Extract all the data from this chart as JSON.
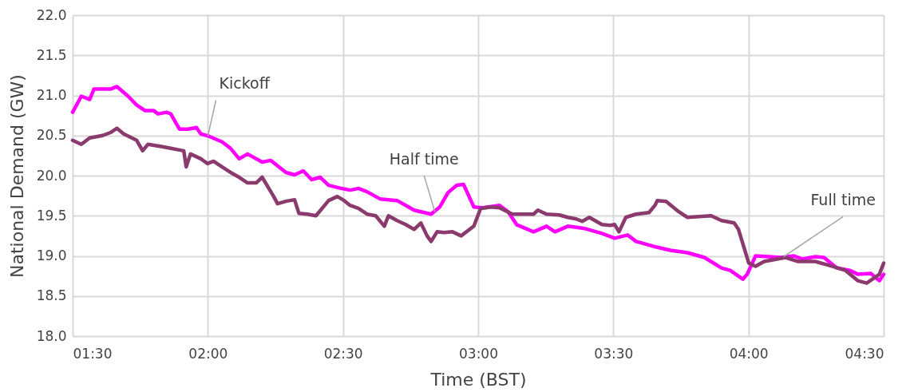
{
  "chart_data": {
    "type": "line",
    "xlabel": "Time (BST)",
    "ylabel": "National Demand (GW)",
    "xlim": [
      1.5,
      4.5
    ],
    "xticks": [
      {
        "value": 1.5,
        "label": "01:30"
      },
      {
        "value": 2.0,
        "label": "02:00"
      },
      {
        "value": 2.5,
        "label": "02:30"
      },
      {
        "value": 3.0,
        "label": "03:00"
      },
      {
        "value": 3.5,
        "label": "03:30"
      },
      {
        "value": 4.0,
        "label": "04:00"
      },
      {
        "value": 4.5,
        "label": "04:30"
      }
    ],
    "ylim": [
      18.0,
      22.0
    ],
    "yticks": [
      {
        "value": 18.0,
        "label": "18.0"
      },
      {
        "value": 18.5,
        "label": "18.5"
      },
      {
        "value": 19.0,
        "label": "19.0"
      },
      {
        "value": 19.5,
        "label": "19.5"
      },
      {
        "value": 20.0,
        "label": "20.0"
      },
      {
        "value": 20.5,
        "label": "20.5"
      },
      {
        "value": 21.0,
        "label": "21.0"
      },
      {
        "value": 21.5,
        "label": "21.5"
      },
      {
        "value": 22.0,
        "label": "22.0"
      }
    ],
    "grid": true,
    "marker": "none",
    "line_style": "solid",
    "series": [
      {
        "color": "#ff00ff",
        "x": [
          1.5,
          1.532,
          1.563,
          1.579,
          1.642,
          1.664,
          1.705,
          1.737,
          1.768,
          1.8,
          1.816,
          1.847,
          1.863,
          1.895,
          1.926,
          1.958,
          1.974,
          2.005,
          2.053,
          2.084,
          2.116,
          2.147,
          2.201,
          2.233,
          2.289,
          2.321,
          2.353,
          2.384,
          2.416,
          2.447,
          2.495,
          2.526,
          2.558,
          2.589,
          2.637,
          2.7,
          2.763,
          2.826,
          2.858,
          2.889,
          2.921,
          2.946,
          2.984,
          3.016,
          3.079,
          3.111,
          3.142,
          3.205,
          3.253,
          3.284,
          3.332,
          3.395,
          3.458,
          3.505,
          3.553,
          3.584,
          3.647,
          3.711,
          3.774,
          3.837,
          3.9,
          3.932,
          3.979,
          3.995,
          4.026,
          4.074,
          4.121,
          4.168,
          4.2,
          4.247,
          4.279,
          4.326,
          4.374,
          4.405,
          4.453,
          4.484,
          4.5
        ],
        "values": [
          20.79,
          20.99,
          20.95,
          21.08,
          21.08,
          21.11,
          20.99,
          20.88,
          20.81,
          20.81,
          20.77,
          20.79,
          20.77,
          20.58,
          20.58,
          20.6,
          20.52,
          20.49,
          20.42,
          20.34,
          20.21,
          20.27,
          20.17,
          20.19,
          20.04,
          20.01,
          20.06,
          19.95,
          19.98,
          19.88,
          19.84,
          19.82,
          19.84,
          19.8,
          19.71,
          19.69,
          19.57,
          19.52,
          19.61,
          19.79,
          19.88,
          19.89,
          19.61,
          19.6,
          19.63,
          19.55,
          19.39,
          19.3,
          19.37,
          19.3,
          19.37,
          19.34,
          19.28,
          19.22,
          19.26,
          19.18,
          19.12,
          19.07,
          19.04,
          18.98,
          18.85,
          18.82,
          18.71,
          18.77,
          19.0,
          18.99,
          18.98,
          19.0,
          18.96,
          18.99,
          18.98,
          18.85,
          18.82,
          18.77,
          18.78,
          18.69,
          18.77
        ]
      },
      {
        "color": "#8b3a6e",
        "x": [
          1.5,
          1.532,
          1.563,
          1.611,
          1.642,
          1.664,
          1.689,
          1.737,
          1.759,
          1.778,
          1.832,
          1.863,
          1.895,
          1.911,
          1.92,
          1.936,
          1.974,
          1.999,
          2.021,
          2.043,
          2.084,
          2.116,
          2.147,
          2.179,
          2.201,
          2.242,
          2.258,
          2.289,
          2.321,
          2.337,
          2.368,
          2.4,
          2.447,
          2.479,
          2.504,
          2.526,
          2.558,
          2.589,
          2.621,
          2.653,
          2.668,
          2.7,
          2.732,
          2.763,
          2.788,
          2.811,
          2.826,
          2.848,
          2.874,
          2.905,
          2.937,
          2.984,
          3.009,
          3.047,
          3.079,
          3.126,
          3.205,
          3.221,
          3.253,
          3.3,
          3.332,
          3.363,
          3.385,
          3.411,
          3.458,
          3.489,
          3.505,
          3.521,
          3.546,
          3.584,
          3.632,
          3.654,
          3.663,
          3.695,
          3.742,
          3.774,
          3.862,
          3.9,
          3.947,
          3.963,
          4.001,
          4.026,
          4.058,
          4.105,
          4.137,
          4.184,
          4.247,
          4.311,
          4.358,
          4.405,
          4.437,
          4.484,
          4.5
        ],
        "values": [
          20.44,
          20.39,
          20.47,
          20.5,
          20.54,
          20.59,
          20.52,
          20.44,
          20.31,
          20.39,
          20.36,
          20.34,
          20.32,
          20.31,
          20.11,
          20.27,
          20.21,
          20.15,
          20.18,
          20.13,
          20.04,
          19.98,
          19.91,
          19.91,
          19.98,
          19.75,
          19.65,
          19.68,
          19.7,
          19.53,
          19.52,
          19.5,
          19.69,
          19.74,
          19.69,
          19.63,
          19.59,
          19.52,
          19.5,
          19.37,
          19.5,
          19.44,
          19.39,
          19.33,
          19.41,
          19.25,
          19.18,
          19.3,
          19.29,
          19.3,
          19.25,
          19.37,
          19.59,
          19.61,
          19.6,
          19.52,
          19.52,
          19.57,
          19.52,
          19.51,
          19.48,
          19.46,
          19.43,
          19.48,
          19.39,
          19.38,
          19.39,
          19.3,
          19.48,
          19.52,
          19.54,
          19.63,
          19.69,
          19.68,
          19.55,
          19.48,
          19.5,
          19.44,
          19.41,
          19.33,
          18.91,
          18.87,
          18.93,
          18.96,
          18.98,
          18.93,
          18.93,
          18.87,
          18.82,
          18.69,
          18.66,
          18.77,
          18.91
        ]
      }
    ],
    "annotations": [
      {
        "text": "Kickoff",
        "x": 2.0,
        "y": 20.49
      },
      {
        "text": "Half time",
        "x": 2.84,
        "y": 19.55
      },
      {
        "text": "Full time",
        "x": 4.13,
        "y": 18.99
      }
    ]
  }
}
